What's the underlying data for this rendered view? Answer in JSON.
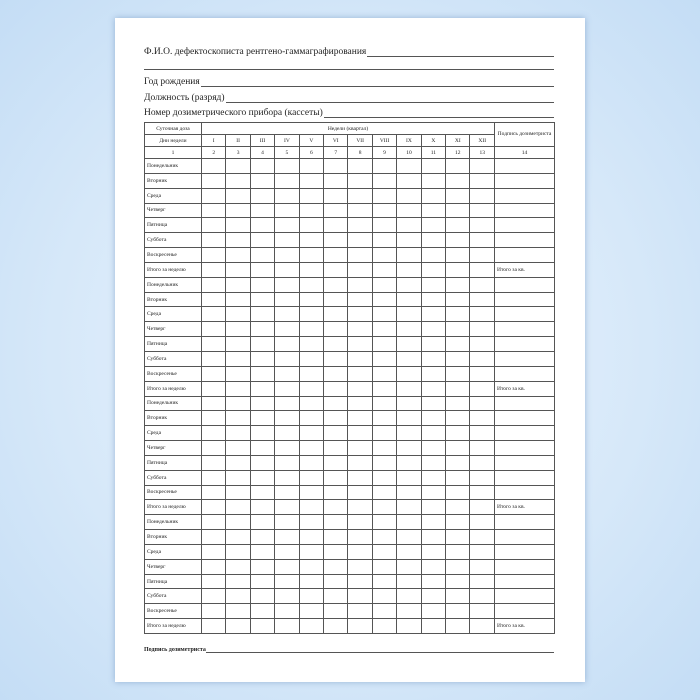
{
  "form": {
    "fio_label": "Ф.И.О. дефектоскописта рентгено-гаммаграфирования",
    "birth_year_label": "Год рождения",
    "position_label": "Должность (разряд)",
    "dosimeter_label": "Номер дозиметрического прибора (кассеты)"
  },
  "table": {
    "daily_dose": "Суточная доза",
    "weeks_header": "Недели (квартал)",
    "signature_header": "Подпись дозиметриста",
    "days_header": "Дни недели",
    "weeks": [
      "I",
      "II",
      "III",
      "IV",
      "V",
      "VI",
      "VII",
      "VIII",
      "IX",
      "X",
      "XI",
      "XII"
    ],
    "col_numbers": [
      "1",
      "2",
      "3",
      "4",
      "5",
      "6",
      "7",
      "8",
      "9",
      "10",
      "11",
      "12",
      "13",
      "14"
    ],
    "days": [
      "Понедельник",
      "Вторник",
      "Среда",
      "Четверг",
      "Пятница",
      "Суббота",
      "Воскресенье"
    ],
    "week_total": "Итого за неделю",
    "quarter_total": "Итого за кв."
  },
  "footer": {
    "signature_label": "Подпись дозиметриста"
  }
}
